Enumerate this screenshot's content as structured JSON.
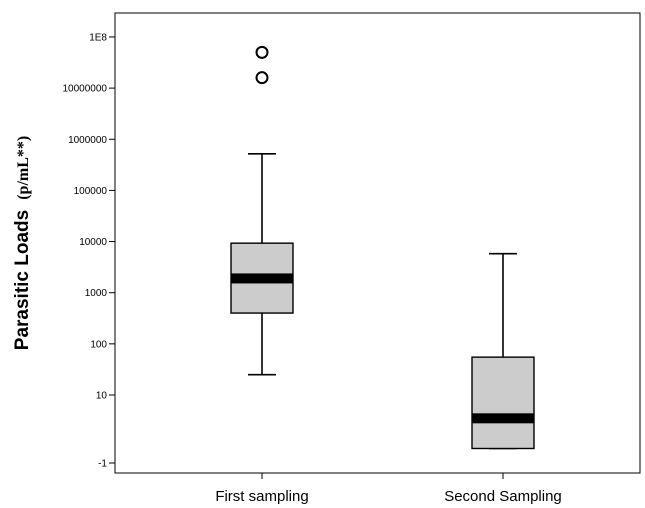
{
  "chart_data": {
    "type": "boxplot",
    "ylabel": "Parasitic Loads",
    "ylabel_unit": "(p/mL**)",
    "y_scale": "log",
    "y_ticks": [
      {
        "label": "1E8",
        "value": 100000000
      },
      {
        "label": "10000000",
        "value": 10000000
      },
      {
        "label": "1000000",
        "value": 1000000
      },
      {
        "label": "100000",
        "value": 100000
      },
      {
        "label": "10000",
        "value": 10000
      },
      {
        "label": "1000",
        "value": 1000
      },
      {
        "label": "100",
        "value": 100
      },
      {
        "label": "10",
        "value": 10
      },
      {
        "label": "-1",
        "value": 0.5
      }
    ],
    "categories": [
      "First sampling",
      "Second Sampling"
    ],
    "boxes": [
      {
        "name": "First sampling",
        "whisker_low": 25,
        "q1": 400,
        "median": 1900,
        "q3": 9300,
        "whisker_high": 520000,
        "outliers": [
          50000000,
          16000000
        ]
      },
      {
        "name": "Second Sampling",
        "whisker_low": 0.9,
        "q1": 0.9,
        "median": 3.5,
        "q3": 55,
        "whisker_high": 5800,
        "outliers": []
      }
    ],
    "colors": {
      "box_fill": "#cccccc",
      "median": "#000000",
      "axis": "#000000"
    },
    "grid": false,
    "legend": "none"
  }
}
